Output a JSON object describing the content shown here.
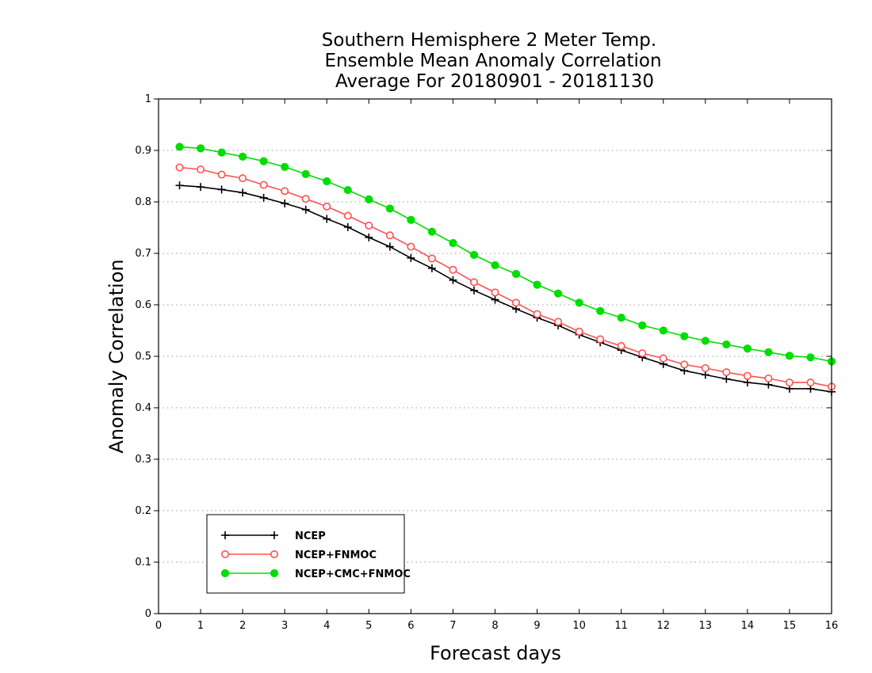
{
  "chart_data": {
    "type": "line",
    "title": [
      "Southern Hemisphere 2 Meter Temp.",
      "Ensemble Mean Anomaly Correlation",
      "Average For 20180901 - 20181130"
    ],
    "xlabel": "Forecast days",
    "ylabel": "Anomaly Correlation",
    "xlim": [
      0,
      16
    ],
    "ylim": [
      0,
      1
    ],
    "xticks": [
      "0",
      "1",
      "2",
      "3",
      "4",
      "5",
      "6",
      "7",
      "8",
      "9",
      "10",
      "11",
      "12",
      "13",
      "14",
      "15",
      "16"
    ],
    "yticks": [
      "0",
      "0.1",
      "0.2",
      "0.3",
      "0.4",
      "0.5",
      "0.6",
      "0.7",
      "0.8",
      "0.9",
      "1"
    ],
    "grid": "dotted horizontal",
    "legend_position": "bottom-left",
    "x": [
      0.5,
      1,
      1.5,
      2,
      2.5,
      3,
      3.5,
      4,
      4.5,
      5,
      5.5,
      6,
      6.5,
      7,
      7.5,
      8,
      8.5,
      9,
      9.5,
      10,
      10.5,
      11,
      11.5,
      12,
      12.5,
      13,
      13.5,
      14,
      14.5,
      15,
      15.5,
      16
    ],
    "series": [
      {
        "name": "NCEP",
        "color": "#000000",
        "marker": "plus",
        "values": [
          0.832,
          0.829,
          0.824,
          0.818,
          0.808,
          0.797,
          0.785,
          0.767,
          0.751,
          0.731,
          0.713,
          0.691,
          0.671,
          0.648,
          0.628,
          0.61,
          0.592,
          0.575,
          0.56,
          0.542,
          0.527,
          0.512,
          0.498,
          0.485,
          0.472,
          0.464,
          0.456,
          0.449,
          0.445,
          0.437,
          0.437,
          0.431
        ]
      },
      {
        "name": "NCEP+FNMOC",
        "color": "#ff5050",
        "marker": "open-circle",
        "values": [
          0.867,
          0.863,
          0.853,
          0.846,
          0.833,
          0.821,
          0.806,
          0.791,
          0.773,
          0.754,
          0.735,
          0.713,
          0.69,
          0.668,
          0.644,
          0.624,
          0.604,
          0.582,
          0.567,
          0.548,
          0.533,
          0.52,
          0.506,
          0.496,
          0.484,
          0.477,
          0.469,
          0.462,
          0.457,
          0.449,
          0.449,
          0.441
        ]
      },
      {
        "name": "NCEP+CMC+FNMOC",
        "color": "#00dd00",
        "marker": "filled-circle",
        "values": [
          0.907,
          0.904,
          0.896,
          0.888,
          0.879,
          0.868,
          0.854,
          0.84,
          0.823,
          0.805,
          0.787,
          0.765,
          0.742,
          0.72,
          0.697,
          0.677,
          0.66,
          0.639,
          0.622,
          0.604,
          0.588,
          0.575,
          0.56,
          0.55,
          0.539,
          0.53,
          0.523,
          0.515,
          0.508,
          0.501,
          0.498,
          0.49
        ]
      }
    ]
  }
}
